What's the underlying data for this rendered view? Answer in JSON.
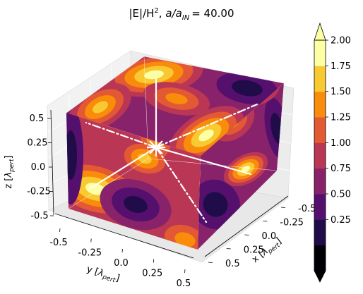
{
  "chart_data": {
    "type": "heatmap",
    "subtype": "3d-cube-surface-contour",
    "title": "|E|/H², a/a_IN = 40.00",
    "title_parts": {
      "quantity": "|E|/H",
      "power": "2",
      "ratio_left": "a/a",
      "ratio_sub": "IN",
      "ratio_value": "= 40.00"
    },
    "axes": {
      "x": {
        "label": "x",
        "unit": "λ",
        "unit_sub": "pert",
        "ticks": [
          "-0.5",
          "-0.25",
          "0.0",
          "0.25",
          "0.5"
        ],
        "range": [
          -0.5,
          0.5
        ]
      },
      "y": {
        "label": "y",
        "unit": "λ",
        "unit_sub": "pert",
        "ticks": [
          "-0.5",
          "-0.25",
          "0.0",
          "0.25",
          "0.5"
        ],
        "range": [
          -0.5,
          0.5
        ]
      },
      "z": {
        "label": "z",
        "unit": "λ",
        "unit_sub": "pert",
        "ticks": [
          "0.5",
          "0.25",
          "0.0",
          "-0.25",
          "-0.5"
        ],
        "range": [
          -0.5,
          0.5
        ]
      }
    },
    "colorbar": {
      "ticks": [
        "2.00",
        "1.75",
        "1.50",
        "1.25",
        "1.00",
        "0.75",
        "0.50",
        "0.25"
      ],
      "levels": [
        0.0,
        0.25,
        0.5,
        0.75,
        1.0,
        1.25,
        1.5,
        1.75,
        2.0
      ],
      "extend": "both",
      "colormap": "inferno",
      "colors": [
        "#000004",
        "#1f0c48",
        "#550f6d",
        "#88226a",
        "#ba3655",
        "#e35933",
        "#f98c0a",
        "#f9c932",
        "#fcffa4"
      ]
    },
    "grid": true
  }
}
